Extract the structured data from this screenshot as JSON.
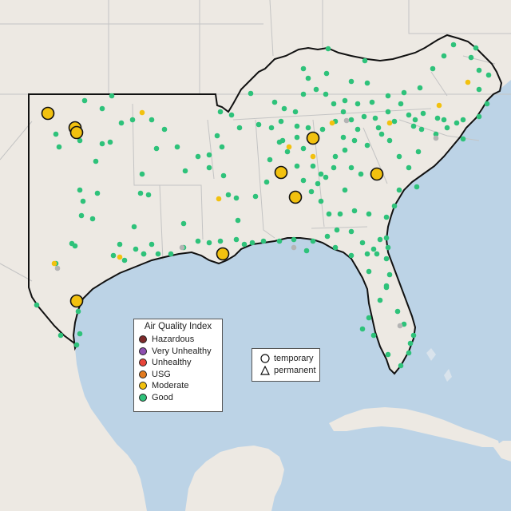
{
  "legend": {
    "title": "Air Quality Index",
    "items": [
      {
        "label": "Hazardous",
        "color": "#7e2a2a"
      },
      {
        "label": "Very Unhealthy",
        "color": "#8e4fb0"
      },
      {
        "label": "Unhealthy",
        "color": "#e8453a"
      },
      {
        "label": "USG",
        "color": "#e27a1e"
      },
      {
        "label": "Moderate",
        "color": "#f2c10f"
      },
      {
        "label": "Good",
        "color": "#2ec27a"
      }
    ]
  },
  "type_legend": {
    "items": [
      {
        "label": "temporary",
        "shape": "circle"
      },
      {
        "label": "permanent",
        "shape": "triangle"
      }
    ]
  },
  "colors": {
    "land": "#ede9e3",
    "water": "#bcd3e6",
    "border": "#c4c4c4",
    "grey_station": "#b4b4b4",
    "good": "#2ec27a",
    "moderate": "#f2c10f"
  }
}
